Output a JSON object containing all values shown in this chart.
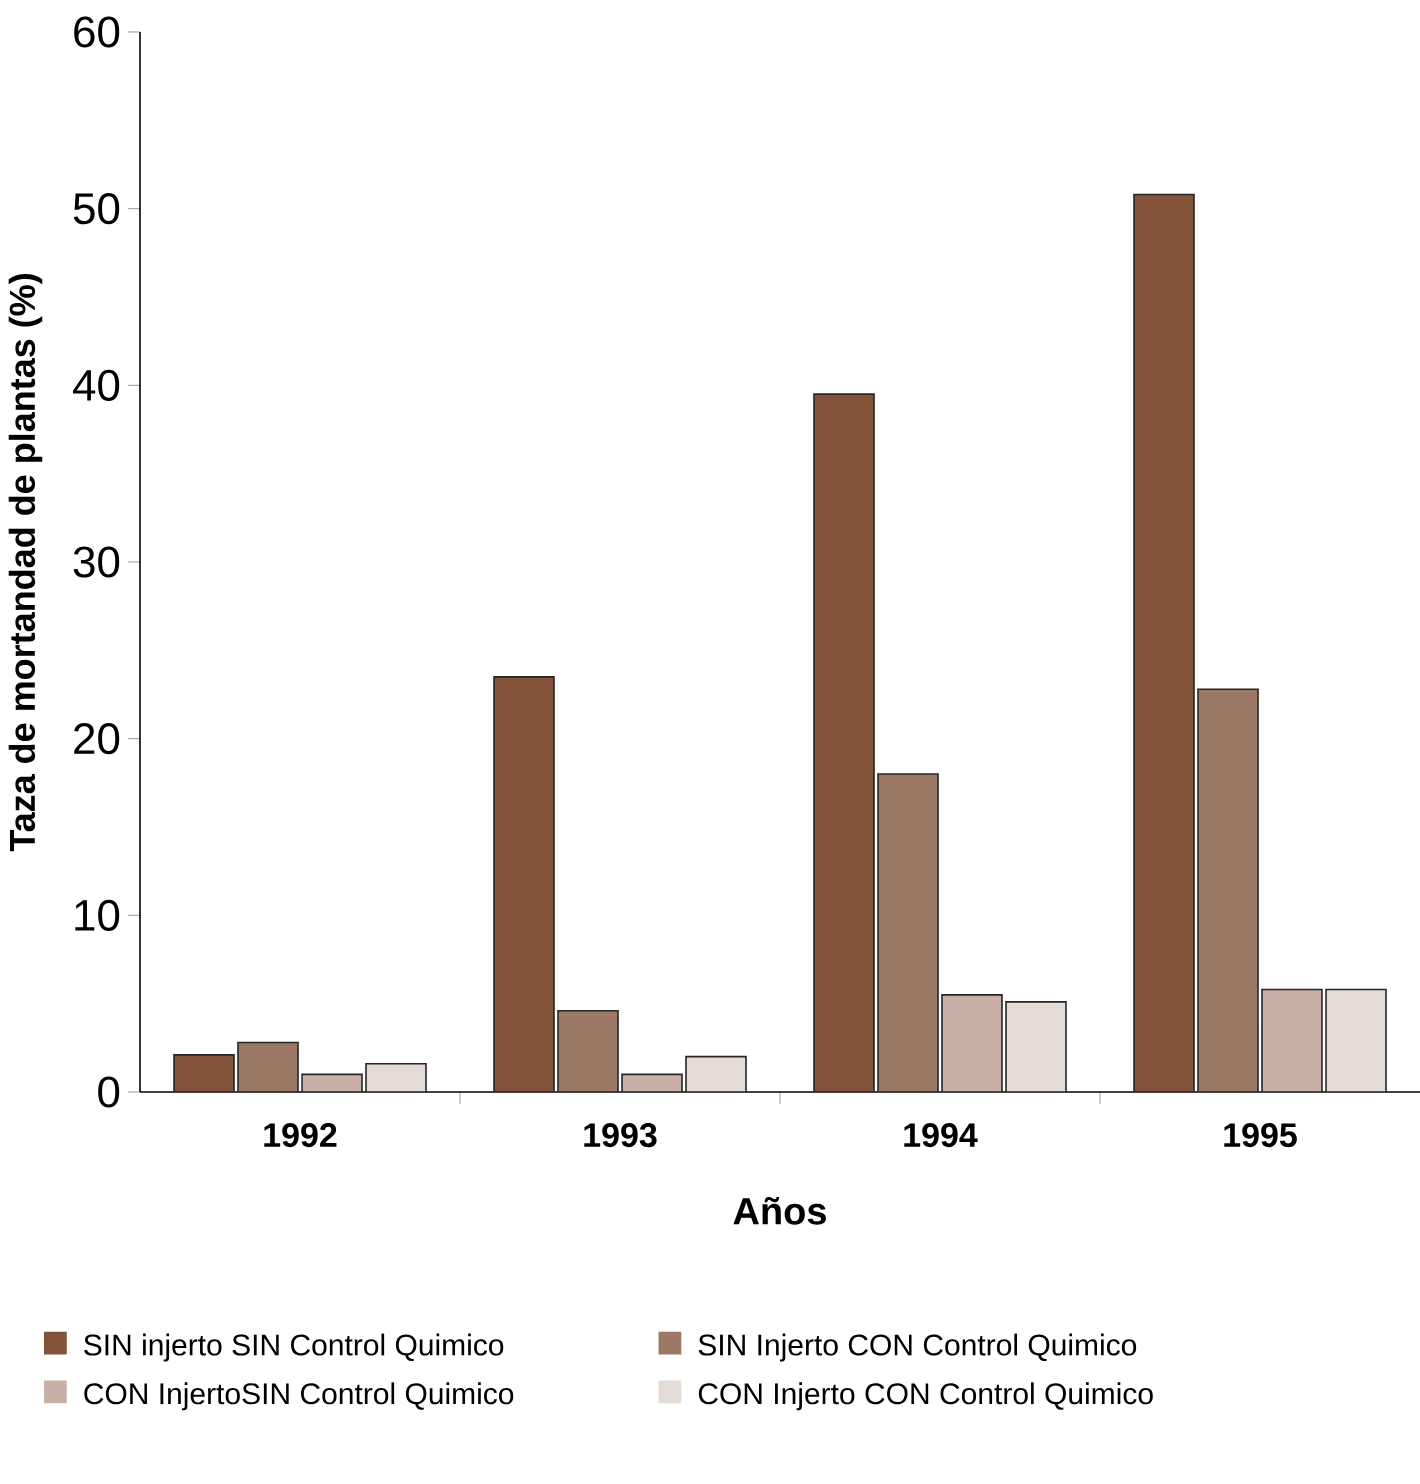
{
  "chart_data": {
    "type": "bar",
    "xlabel": "Años",
    "ylabel": "Taza de mortandad de plantas (%)",
    "categories": [
      "1992",
      "1993",
      "1994",
      "1995"
    ],
    "series": [
      {
        "name": "SIN injerto SIN Control Quimico",
        "color": "#82523b",
        "values": [
          2.1,
          23.5,
          39.5,
          50.8
        ]
      },
      {
        "name": "SIN Injerto CON Control Quimico",
        "color": "#9c7866",
        "values": [
          2.8,
          4.6,
          18.0,
          22.8
        ]
      },
      {
        "name": "CON InjertoSIN Control Quimico",
        "color": "#c8b0a7",
        "values": [
          1.0,
          1.0,
          5.5,
          5.8
        ]
      },
      {
        "name": "CON Injerto CON Control Quimico",
        "color": "#e4dbd6",
        "values": [
          1.6,
          2.0,
          5.1,
          5.8
        ]
      }
    ],
    "ylim": [
      0,
      60
    ],
    "yticks": [
      0,
      10,
      20,
      30,
      40,
      50,
      60
    ],
    "legend": "bottom"
  }
}
